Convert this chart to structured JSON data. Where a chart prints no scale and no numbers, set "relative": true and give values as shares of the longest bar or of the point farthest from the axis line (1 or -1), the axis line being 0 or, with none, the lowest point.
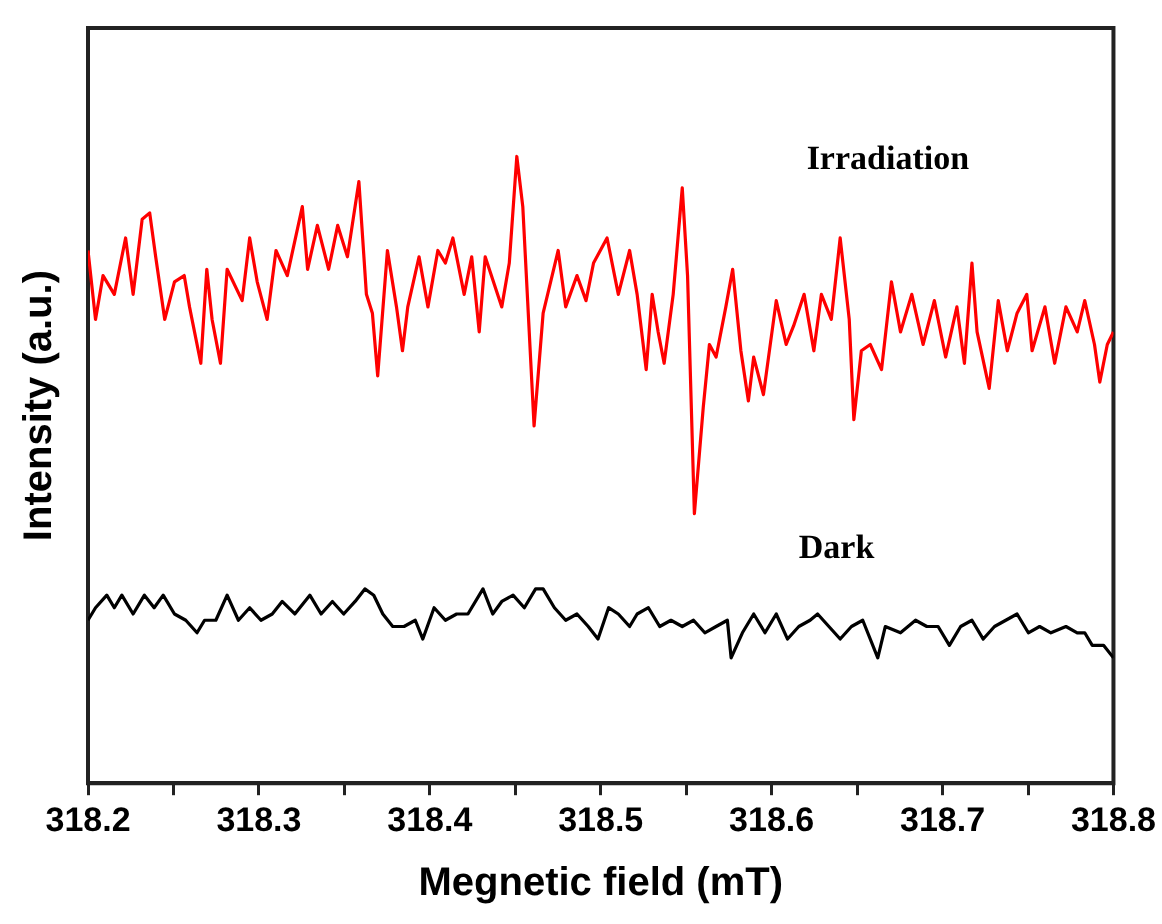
{
  "chart_data": {
    "type": "line",
    "xlabel": "Megnetic field (mT)",
    "ylabel": "Intensity (a.u.)",
    "relative": true,
    "xlim": [
      318.2,
      318.8
    ],
    "xticks": [
      318.2,
      {
        "value": 318.25,
        "label": null
      },
      318.3,
      {
        "value": 318.35,
        "label": null
      },
      318.4,
      {
        "value": 318.45,
        "label": null
      },
      318.5,
      {
        "value": 318.55,
        "label": null
      },
      318.6,
      {
        "value": 318.65,
        "label": null
      },
      318.7,
      {
        "value": 318.75,
        "label": null
      },
      318.8
    ],
    "tick_labels": "x",
    "grid": false,
    "legend": false,
    "marker": "none",
    "line_style": "solid",
    "series": [
      {
        "name": "Irradiation",
        "color": "#ff0000",
        "x": [
          318.2,
          318.2044,
          318.2088,
          318.2154,
          318.222,
          318.2264,
          318.2317,
          318.2361,
          318.2396,
          318.2449,
          318.2506,
          318.2563,
          318.2594,
          318.266,
          318.2695,
          318.2726,
          318.2775,
          318.2814,
          318.2902,
          318.2946,
          318.299,
          318.3048,
          318.31,
          318.3166,
          318.3254,
          318.3285,
          318.3342,
          318.3408,
          318.3461,
          318.3518,
          318.3585,
          318.3629,
          318.3664,
          318.3695,
          318.3752,
          318.3805,
          318.384,
          318.3871,
          318.3937,
          318.3989,
          318.4047,
          318.4091,
          318.4135,
          318.4201,
          318.4245,
          318.4289,
          318.4324,
          318.4421,
          318.4465,
          318.4509,
          318.4544,
          318.461,
          318.4663,
          318.4751,
          318.4795,
          318.4861,
          318.4914,
          318.4958,
          318.5037,
          318.5103,
          318.5169,
          318.5213,
          318.5266,
          318.5301,
          318.5336,
          318.5371,
          318.5424,
          318.5477,
          318.5508,
          318.5548,
          318.56,
          318.5636,
          318.5675,
          318.5732,
          318.5772,
          318.582,
          318.5864,
          318.5895,
          318.5952,
          318.6027,
          318.6085,
          318.6129,
          318.619,
          318.6247,
          318.6291,
          318.6349,
          318.6401,
          318.6454,
          318.6481,
          318.6525,
          318.6577,
          318.6643,
          318.6701,
          318.6754,
          318.682,
          318.6886,
          318.6952,
          318.7018,
          318.7084,
          318.7128,
          318.7172,
          318.7202,
          318.7273,
          318.7326,
          318.7379,
          318.7436,
          318.7493,
          318.7524,
          318.7599,
          318.7656,
          318.7722,
          318.7788,
          318.7832,
          318.7889,
          318.792,
          318.7964,
          318.8
        ],
        "values": [
          0.85,
          0.74,
          0.81,
          0.78,
          0.87,
          0.78,
          0.9,
          0.91,
          0.84,
          0.74,
          0.8,
          0.81,
          0.76,
          0.67,
          0.82,
          0.74,
          0.67,
          0.82,
          0.77,
          0.87,
          0.8,
          0.74,
          0.85,
          0.81,
          0.92,
          0.82,
          0.89,
          0.82,
          0.89,
          0.84,
          0.96,
          0.78,
          0.75,
          0.65,
          0.85,
          0.76,
          0.69,
          0.76,
          0.84,
          0.76,
          0.85,
          0.83,
          0.87,
          0.78,
          0.84,
          0.72,
          0.84,
          0.76,
          0.83,
          1,
          0.92,
          0.57,
          0.75,
          0.85,
          0.76,
          0.81,
          0.77,
          0.83,
          0.87,
          0.78,
          0.85,
          0.78,
          0.66,
          0.78,
          0.72,
          0.67,
          0.78,
          0.95,
          0.81,
          0.43,
          0.6,
          0.7,
          0.68,
          0.76,
          0.82,
          0.69,
          0.61,
          0.68,
          0.62,
          0.77,
          0.7,
          0.73,
          0.78,
          0.69,
          0.78,
          0.74,
          0.87,
          0.74,
          0.58,
          0.69,
          0.7,
          0.66,
          0.8,
          0.72,
          0.78,
          0.7,
          0.77,
          0.68,
          0.76,
          0.67,
          0.83,
          0.72,
          0.63,
          0.77,
          0.69,
          0.75,
          0.78,
          0.69,
          0.76,
          0.67,
          0.76,
          0.72,
          0.77,
          0.7,
          0.64,
          0.7,
          0.72
        ]
      },
      {
        "name": "Dark",
        "color": "#000000",
        "x": [
          318.2,
          318.2044,
          318.211,
          318.2154,
          318.2198,
          318.2264,
          318.233,
          318.2387,
          318.244,
          318.2506,
          318.2572,
          318.2638,
          318.2682,
          318.2748,
          318.2814,
          318.288,
          318.2946,
          318.3012,
          318.3078,
          318.3136,
          318.321,
          318.3298,
          318.3364,
          318.343,
          318.3496,
          318.3563,
          318.362,
          318.3672,
          318.3725,
          318.3783,
          318.3849,
          318.3915,
          318.3959,
          318.4025,
          318.4091,
          318.4157,
          318.4223,
          318.4311,
          318.4368,
          318.4421,
          318.4487,
          318.4553,
          318.4619,
          318.4663,
          318.4729,
          318.4795,
          318.4861,
          318.4927,
          318.4984,
          318.5046,
          318.5103,
          318.5169,
          318.5213,
          318.5279,
          318.5345,
          318.5411,
          318.5477,
          318.5543,
          318.5609,
          318.5675,
          318.5741,
          318.5763,
          318.5829,
          318.5895,
          318.5961,
          318.6027,
          318.6093,
          318.6159,
          318.6225,
          318.6269,
          318.6335,
          318.6401,
          318.6467,
          318.6533,
          318.6621,
          318.6665,
          318.6754,
          318.6842,
          318.6908,
          318.6974,
          318.704,
          318.7106,
          318.7172,
          318.7238,
          318.7304,
          318.737,
          318.7436,
          318.7502,
          318.7568,
          318.7634,
          318.7722,
          318.7788,
          318.7832,
          318.7876,
          318.7942,
          318.8
        ],
        "values": [
          0.26,
          0.28,
          0.3,
          0.28,
          0.3,
          0.27,
          0.3,
          0.28,
          0.3,
          0.27,
          0.26,
          0.24,
          0.26,
          0.26,
          0.3,
          0.26,
          0.28,
          0.26,
          0.27,
          0.29,
          0.27,
          0.3,
          0.27,
          0.29,
          0.27,
          0.29,
          0.31,
          0.3,
          0.27,
          0.25,
          0.25,
          0.26,
          0.23,
          0.28,
          0.26,
          0.27,
          0.27,
          0.31,
          0.27,
          0.29,
          0.3,
          0.28,
          0.31,
          0.31,
          0.28,
          0.26,
          0.27,
          0.25,
          0.23,
          0.28,
          0.27,
          0.25,
          0.27,
          0.28,
          0.25,
          0.26,
          0.25,
          0.26,
          0.24,
          0.25,
          0.26,
          0.2,
          0.24,
          0.27,
          0.24,
          0.27,
          0.23,
          0.25,
          0.26,
          0.27,
          0.25,
          0.23,
          0.25,
          0.26,
          0.2,
          0.25,
          0.24,
          0.26,
          0.25,
          0.25,
          0.22,
          0.25,
          0.26,
          0.23,
          0.25,
          0.26,
          0.27,
          0.24,
          0.25,
          0.24,
          0.25,
          0.24,
          0.24,
          0.22,
          0.22,
          0.2
        ]
      }
    ]
  }
}
